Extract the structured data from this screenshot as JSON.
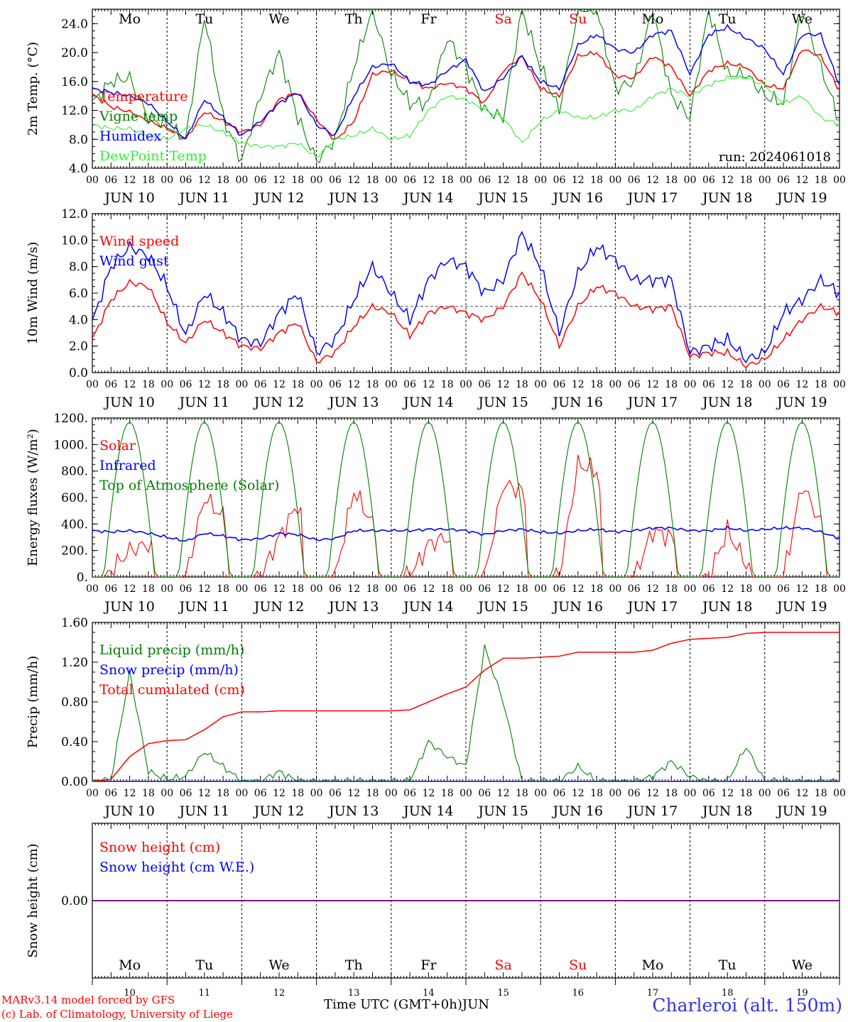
{
  "days": [
    {
      "name": "Mo",
      "date": "10",
      "label": "JUN 10",
      "weekend": false
    },
    {
      "name": "Tu",
      "date": "11",
      "label": "JUN 11",
      "weekend": false
    },
    {
      "name": "We",
      "date": "12",
      "label": "JUN 12",
      "weekend": false
    },
    {
      "name": "Th",
      "date": "13",
      "label": "JUN 13",
      "weekend": false
    },
    {
      "name": "Fr",
      "date": "14",
      "label": "JUN 14",
      "weekend": false
    },
    {
      "name": "Sa",
      "date": "15",
      "label": "JUN 15",
      "weekend": true
    },
    {
      "name": "Su",
      "date": "16",
      "label": "JUN 16",
      "weekend": true
    },
    {
      "name": "Mo",
      "date": "17",
      "label": "JUN 17",
      "weekend": false
    },
    {
      "name": "Tu",
      "date": "18",
      "label": "JUN 18",
      "weekend": false
    },
    {
      "name": "We",
      "date": "19",
      "label": "JUN 19",
      "weekend": false
    }
  ],
  "hour_ticks": [
    "00",
    "06",
    "12",
    "18"
  ],
  "last_tick": "00",
  "colors": {
    "red": "#ff0000",
    "blue": "#0000ff",
    "darkgreen": "#008000",
    "lightgreen": "#33ee33",
    "purple": "#800080",
    "weekend": "#ff0000"
  },
  "footer": {
    "model": "MARv3.14 model forced by GFS",
    "credit": "(c) Lab. of Climatology, University of Liege",
    "axis_title": "Time UTC (GMT+0h)",
    "month": "JUN",
    "station": "Charleroi (alt. 150m)"
  },
  "chart_data": [
    {
      "type": "line",
      "ylabel": "2m Temp. (°C)",
      "ylim": [
        4,
        26
      ],
      "yticks": [
        "4.0",
        "8.0",
        "12.0",
        "16.0",
        "20.0",
        "24.0"
      ],
      "annotation": "run: 2024061018",
      "day_names_top": true,
      "x_hours": [
        0,
        6,
        12,
        18,
        24,
        30,
        36,
        42,
        48,
        54,
        60,
        66,
        72,
        78,
        84,
        90,
        96,
        102,
        108,
        114,
        120,
        126,
        132,
        138,
        144,
        150,
        156,
        162,
        168,
        174,
        180,
        186,
        192,
        198,
        204,
        210,
        216,
        222,
        228,
        234,
        240
      ],
      "series": [
        {
          "name": "Temperature",
          "color": "red",
          "values": [
            14.2,
            12.5,
            11.8,
            10.5,
            9.5,
            8.0,
            11.8,
            10.5,
            9.0,
            10.0,
            13.5,
            14.5,
            10.8,
            7.8,
            10.5,
            17.0,
            17.5,
            16.0,
            15.0,
            15.8,
            15.0,
            13.0,
            17.5,
            19.5,
            15.0,
            14.0,
            19.5,
            20.0,
            16.8,
            16.5,
            19.5,
            18.0,
            14.0,
            17.5,
            18.5,
            18.0,
            15.5,
            15.0,
            20.5,
            19.5,
            14.8
          ]
        },
        {
          "name": "Vigne temp",
          "color": "darkgreen",
          "values": [
            13.0,
            16.0,
            16.5,
            11.0,
            10.0,
            8.0,
            25.0,
            11.0,
            5.0,
            14.0,
            20.0,
            11.0,
            5.0,
            8.0,
            18.0,
            26.0,
            17.0,
            13.0,
            13.0,
            22.0,
            18.0,
            12.0,
            11.0,
            26.0,
            18.0,
            12.0,
            26.0,
            26.0,
            15.0,
            16.0,
            26.0,
            14.0,
            11.0,
            26.0,
            17.0,
            17.0,
            14.0,
            13.0,
            26.0,
            18.0,
            10.5
          ]
        },
        {
          "name": "Humidex",
          "color": "blue",
          "values": [
            15.0,
            14.5,
            14.0,
            13.0,
            10.5,
            8.0,
            13.5,
            11.0,
            8.5,
            10.5,
            13.0,
            14.5,
            10.0,
            8.5,
            14.0,
            18.0,
            18.5,
            16.0,
            15.5,
            17.5,
            19.0,
            14.5,
            16.5,
            19.5,
            16.0,
            15.0,
            21.0,
            22.5,
            20.5,
            20.0,
            22.5,
            23.0,
            17.0,
            22.5,
            23.5,
            22.0,
            20.5,
            17.0,
            22.5,
            22.5,
            15.5
          ]
        },
        {
          "name": "DewPoint Temp",
          "color": "lightgreen",
          "values": [
            10.0,
            9.5,
            9.5,
            8.5,
            8.0,
            9.5,
            10.0,
            9.0,
            7.5,
            7.0,
            7.0,
            7.5,
            5.5,
            8.0,
            8.5,
            9.5,
            8.0,
            8.5,
            12.0,
            14.0,
            13.5,
            12.0,
            11.0,
            7.5,
            10.5,
            12.0,
            11.0,
            11.0,
            12.0,
            12.0,
            14.0,
            15.0,
            14.0,
            15.5,
            16.5,
            16.5,
            15.5,
            13.0,
            14.0,
            11.0,
            10.0
          ]
        }
      ]
    },
    {
      "type": "line",
      "ylabel": "10m Wind (m/s)",
      "ylim": [
        0,
        12
      ],
      "yticks": [
        "0.0",
        "2.0",
        "4.0",
        "6.0",
        "8.0",
        "10.0",
        "12.0"
      ],
      "ref_line": 5,
      "x_hours": [
        0,
        6,
        12,
        18,
        24,
        30,
        36,
        42,
        48,
        54,
        60,
        66,
        72,
        78,
        84,
        90,
        96,
        102,
        108,
        114,
        120,
        126,
        132,
        138,
        144,
        150,
        156,
        162,
        168,
        174,
        180,
        186,
        192,
        198,
        204,
        210,
        216,
        222,
        228,
        234,
        240
      ],
      "series": [
        {
          "name": "Wind speed",
          "color": "red",
          "values": [
            2.5,
            5.5,
            6.8,
            6.5,
            3.8,
            2.2,
            4.0,
            3.0,
            2.0,
            1.8,
            3.0,
            3.8,
            0.8,
            1.5,
            3.5,
            5.0,
            4.5,
            2.8,
            4.5,
            5.0,
            4.5,
            4.0,
            5.0,
            7.5,
            5.5,
            2.0,
            5.0,
            6.5,
            6.0,
            5.0,
            4.8,
            5.0,
            1.2,
            1.5,
            1.5,
            0.5,
            1.0,
            2.5,
            4.0,
            5.0,
            4.5
          ]
        },
        {
          "name": "Wind gust",
          "color": "blue",
          "values": [
            3.8,
            8.0,
            9.5,
            8.8,
            6.5,
            2.8,
            6.0,
            4.5,
            2.5,
            2.2,
            4.5,
            6.0,
            1.5,
            2.5,
            5.5,
            8.0,
            6.0,
            4.0,
            7.0,
            8.5,
            8.0,
            6.0,
            7.0,
            10.5,
            8.0,
            3.0,
            7.5,
            9.5,
            8.5,
            7.0,
            7.0,
            7.0,
            1.5,
            2.0,
            2.5,
            1.0,
            1.5,
            4.5,
            5.5,
            7.0,
            6.0
          ]
        }
      ]
    },
    {
      "type": "line",
      "ylabel": "Energy fluxes (W/m²)",
      "ylim": [
        0,
        1200
      ],
      "yticks": [
        "0.",
        "200.",
        "400.",
        "600.",
        "800.",
        "1000.",
        "1200."
      ],
      "x_hours": [
        0,
        6,
        12,
        18,
        24,
        30,
        36,
        42,
        48,
        54,
        60,
        66,
        72,
        78,
        84,
        90,
        96,
        102,
        108,
        114,
        120,
        126,
        132,
        138,
        144,
        150,
        156,
        162,
        168,
        174,
        180,
        186,
        192,
        198,
        204,
        210,
        216,
        222,
        228,
        234,
        240
      ],
      "series": [
        {
          "name": "Solar",
          "color": "red",
          "values": [
            0,
            50,
            200,
            250,
            0,
            0,
            600,
            450,
            0,
            0,
            300,
            550,
            0,
            0,
            650,
            400,
            0,
            0,
            250,
            300,
            0,
            0,
            700,
            650,
            0,
            0,
            850,
            800,
            0,
            0,
            350,
            300,
            0,
            0,
            350,
            100,
            0,
            0,
            700,
            400,
            0
          ]
        },
        {
          "name": "Infrared",
          "color": "blue",
          "values": [
            350,
            340,
            350,
            330,
            300,
            270,
            330,
            310,
            280,
            290,
            330,
            320,
            280,
            290,
            350,
            350,
            350,
            350,
            360,
            360,
            350,
            320,
            350,
            360,
            340,
            330,
            350,
            360,
            340,
            350,
            370,
            370,
            350,
            350,
            370,
            350,
            360,
            370,
            370,
            340,
            290
          ]
        },
        {
          "name": "Top of Atmosphere (Solar)",
          "color": "darkgreen",
          "solar_peak": 1170,
          "sunrise_h": 3.7,
          "sunset_h": 20.2
        }
      ]
    },
    {
      "type": "line",
      "ylabel": "Precip (mm/h)",
      "ylim": [
        0,
        1.6
      ],
      "yticks": [
        "0.00",
        "0.40",
        "0.80",
        "1.20",
        "1.60"
      ],
      "x_hours": [
        0,
        6,
        12,
        18,
        24,
        30,
        36,
        42,
        48,
        54,
        60,
        66,
        72,
        78,
        84,
        90,
        96,
        102,
        108,
        114,
        120,
        126,
        132,
        138,
        144,
        150,
        156,
        162,
        168,
        174,
        180,
        186,
        192,
        198,
        204,
        210,
        216,
        222,
        228,
        234,
        240
      ],
      "series": [
        {
          "name": "Liquid precip (mm/h)",
          "color": "darkgreen",
          "values": [
            0,
            0.02,
            1.1,
            0.1,
            0.02,
            0.05,
            0.3,
            0.15,
            0,
            0,
            0.1,
            0,
            0,
            0,
            0,
            0,
            0,
            0,
            0.4,
            0.25,
            0.15,
            1.35,
            0.8,
            0,
            0,
            0,
            0.15,
            0,
            0,
            0,
            0.05,
            0.2,
            0.05,
            0,
            0,
            0.35,
            0,
            0,
            0,
            0,
            0
          ]
        },
        {
          "name": "Snow precip (mm/h)",
          "color": "blue",
          "values": [
            0,
            0,
            0,
            0,
            0,
            0,
            0,
            0,
            0,
            0,
            0,
            0,
            0,
            0,
            0,
            0,
            0,
            0,
            0,
            0,
            0,
            0,
            0,
            0,
            0,
            0,
            0,
            0,
            0,
            0,
            0,
            0,
            0,
            0,
            0,
            0,
            0,
            0,
            0,
            0,
            0
          ]
        },
        {
          "name": "Total cumulated (cm)",
          "color": "red",
          "values": [
            0,
            0.02,
            0.25,
            0.38,
            0.41,
            0.42,
            0.52,
            0.65,
            0.7,
            0.7,
            0.71,
            0.71,
            0.71,
            0.71,
            0.71,
            0.71,
            0.71,
            0.72,
            0.8,
            0.88,
            0.95,
            1.12,
            1.24,
            1.24,
            1.25,
            1.26,
            1.3,
            1.3,
            1.3,
            1.3,
            1.32,
            1.39,
            1.43,
            1.44,
            1.45,
            1.49,
            1.5,
            1.5,
            1.5,
            1.5,
            1.5
          ]
        }
      ]
    },
    {
      "type": "line",
      "ylabel": "Snow height (cm)",
      "ylim": [
        -1,
        1
      ],
      "yticks": [
        "0.00"
      ],
      "day_names_bottom": true,
      "x_hours": [
        0,
        240
      ],
      "series": [
        {
          "name": "Snow height (cm)",
          "color": "red",
          "values": [
            0,
            0
          ]
        },
        {
          "name": "Snow height (cm W.E.)",
          "color": "blue",
          "values": [
            0,
            0
          ]
        }
      ]
    }
  ]
}
